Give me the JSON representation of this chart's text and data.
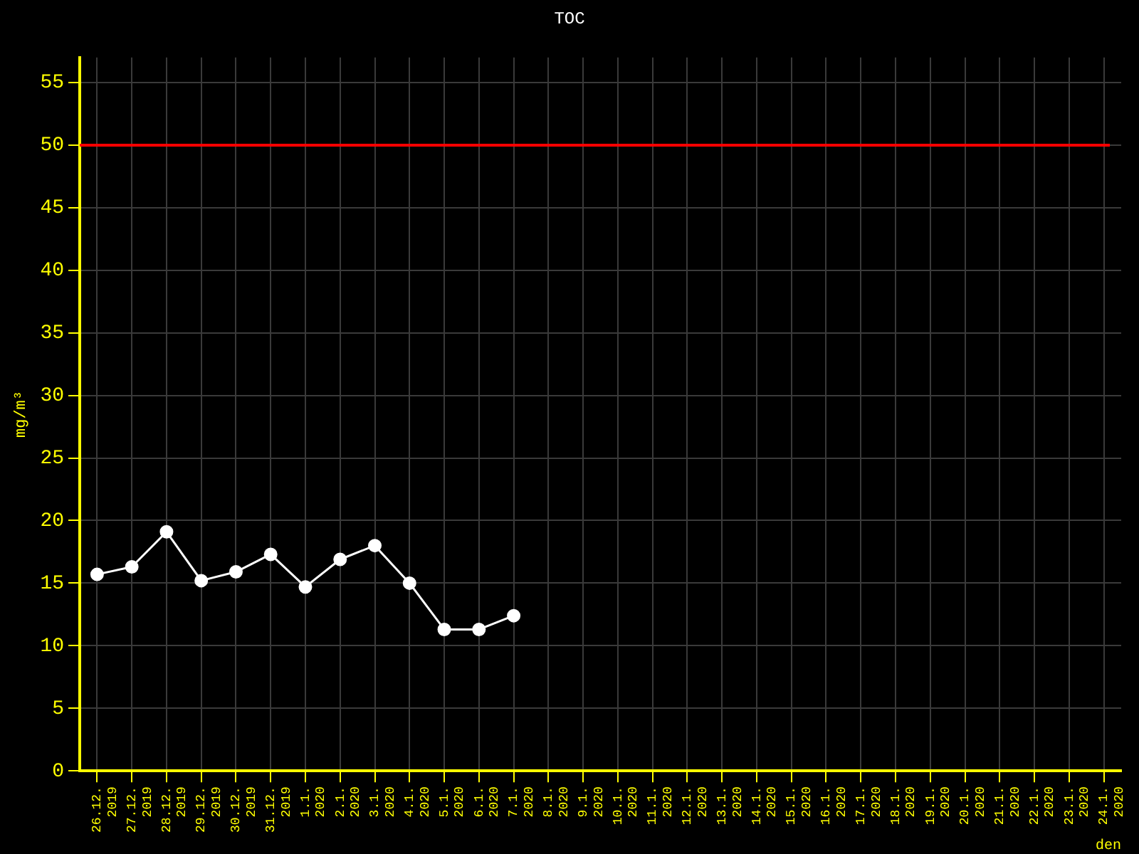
{
  "chart_data": {
    "type": "line",
    "title": "TOC",
    "xlabel": "den",
    "ylabel": "mg/m³",
    "categories": [
      "26.12. 2019",
      "27.12. 2019",
      "28.12. 2019",
      "29.12. 2019",
      "30.12. 2019",
      "31.12. 2019",
      "1.1. 2020",
      "2.1. 2020",
      "3.1. 2020",
      "4.1. 2020",
      "5.1. 2020",
      "6.1. 2020",
      "7.1. 2020",
      "8.1. 2020",
      "9.1. 2020",
      "10.1. 2020",
      "11.1. 2020",
      "12.1. 2020",
      "13.1. 2020",
      "14.1. 2020",
      "15.1. 2020",
      "16.1. 2020",
      "17.1. 2020",
      "18.1. 2020",
      "19.1. 2020",
      "20.1. 2020",
      "21.1. 2020",
      "22.1. 2020",
      "23.1. 2020",
      "24.1. 2020"
    ],
    "series": [
      {
        "color": "#ffffff",
        "values": [
          15.7,
          16.3,
          19.1,
          15.2,
          15.9,
          17.3,
          14.7,
          16.9,
          18.0,
          15.0,
          11.3,
          11.3,
          12.4,
          null,
          null,
          null,
          null,
          null,
          null,
          null,
          null,
          null,
          null,
          null,
          null,
          null,
          null,
          null,
          null,
          null
        ]
      }
    ],
    "ylim": [
      0,
      57
    ],
    "yticks": [
      0,
      5,
      10,
      15,
      20,
      25,
      30,
      35,
      40,
      45,
      50,
      55
    ],
    "ref_lines": [
      {
        "axis": "y",
        "value": 50,
        "color": "#ff0000"
      }
    ],
    "grid": true,
    "legend": false,
    "marker": "circle",
    "line_style": "solid"
  }
}
